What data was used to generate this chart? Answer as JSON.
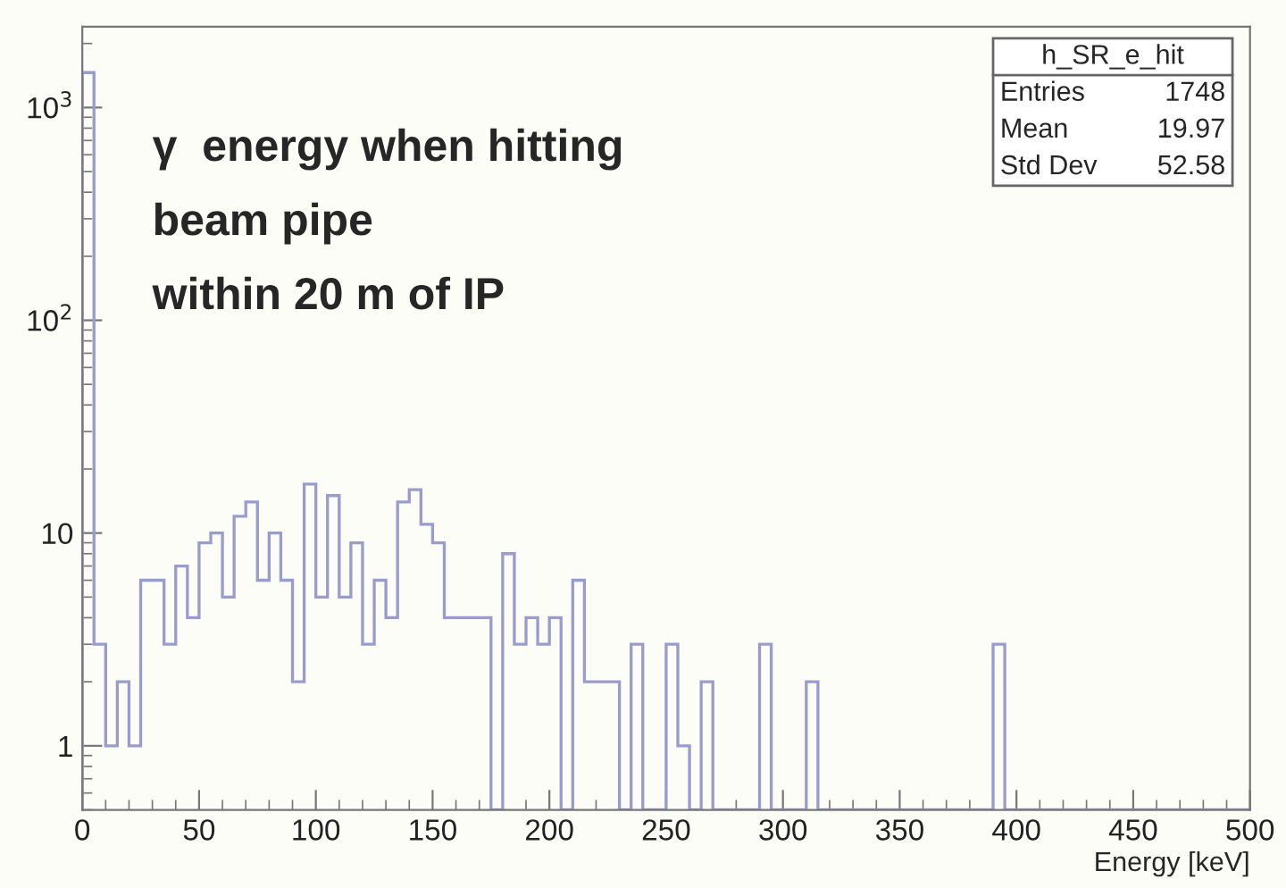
{
  "chart_data": {
    "type": "histogram",
    "title": "γ  energy when hitting\nbeam pipe\nwithin 20 m of IP",
    "xlabel": "Energy [keV]",
    "bins": [
      0,
      5,
      10,
      15,
      20,
      25,
      30,
      35,
      40,
      45,
      50,
      55,
      60,
      65,
      70,
      75,
      80,
      85,
      90,
      95,
      100,
      105,
      110,
      115,
      120,
      125,
      130,
      135,
      140,
      145,
      150,
      155,
      160,
      165,
      170,
      175,
      180,
      185,
      190,
      195,
      200,
      205,
      210,
      215,
      220,
      225,
      230,
      235,
      240,
      245,
      250,
      255,
      260,
      265,
      270,
      275,
      280,
      285,
      290,
      295,
      300,
      305,
      310,
      315,
      320,
      325,
      330,
      335,
      340,
      345,
      350,
      355,
      360,
      365,
      370,
      375,
      380,
      385,
      390,
      395,
      400,
      405,
      410,
      415,
      420,
      425,
      430,
      435,
      440,
      445,
      450,
      455,
      460,
      465,
      470,
      475,
      480,
      485,
      490,
      495,
      500
    ],
    "values": [
      1460,
      3,
      1,
      2,
      1,
      6,
      6,
      3,
      7,
      4,
      9,
      10,
      5,
      12,
      14,
      6,
      10,
      6,
      2,
      17,
      5,
      15,
      5,
      9,
      3,
      6,
      4,
      14,
      16,
      11,
      9,
      4,
      4,
      4,
      4,
      null,
      8,
      3,
      4,
      3,
      4,
      null,
      6,
      2,
      2,
      2,
      null,
      3,
      null,
      null,
      3,
      1,
      null,
      2,
      null,
      null,
      null,
      null,
      3,
      null,
      null,
      null,
      2,
      null,
      null,
      null,
      null,
      null,
      null,
      null,
      null,
      null,
      null,
      null,
      null,
      null,
      null,
      null,
      3,
      null,
      null,
      null,
      null,
      null,
      null,
      null,
      null,
      null,
      null,
      null,
      null,
      null,
      null,
      null,
      null,
      null,
      null,
      null,
      null,
      null
    ],
    "color": "#9a9ccc",
    "log": "y",
    "xlim": [
      0,
      500
    ],
    "ylim": [
      0.5,
      2400
    ],
    "xticks": [
      0,
      50,
      100,
      150,
      200,
      250,
      300,
      350,
      400,
      450,
      500
    ],
    "yticks": [
      1,
      10,
      {
        "value": 100,
        "label": "10$^{2}$"
      },
      {
        "value": 1000,
        "label": "10$^{3}$"
      }
    ],
    "grid": false,
    "legend": false,
    "annotations": [
      "h_SR_e_hit",
      "Entries",
      "1748",
      "Mean",
      "19.97",
      "Std Dev",
      "52.58"
    ]
  }
}
